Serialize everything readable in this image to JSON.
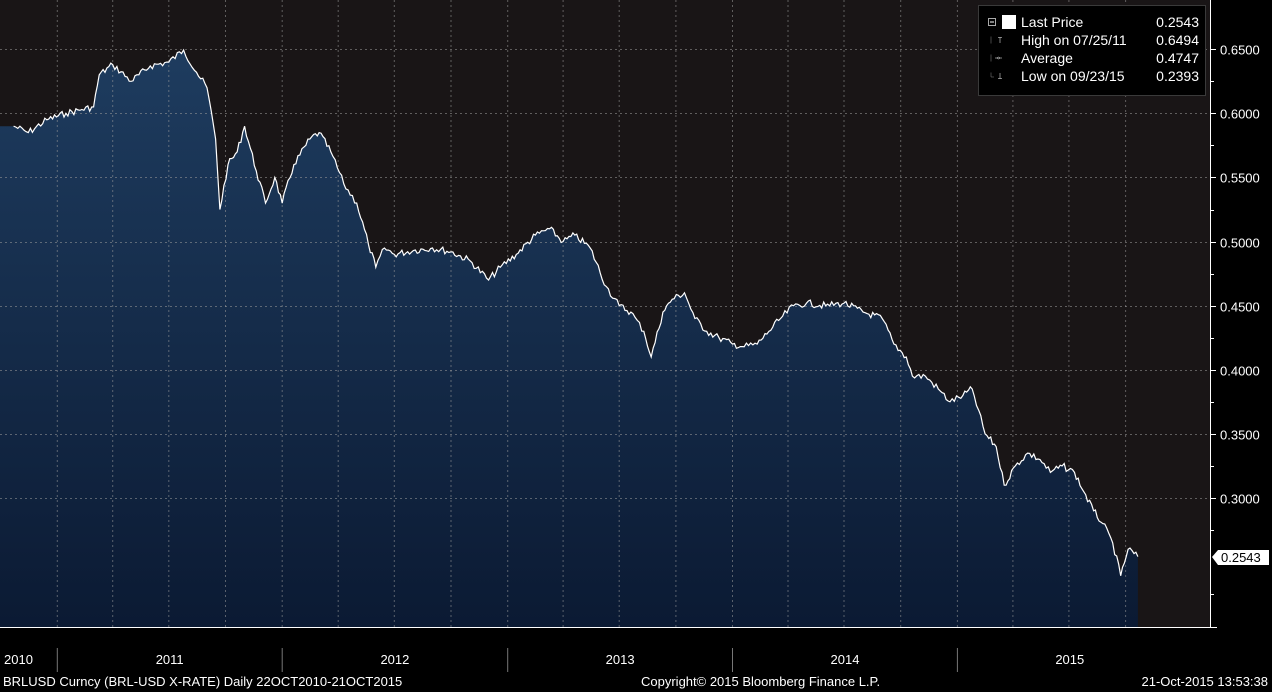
{
  "chart_data": {
    "type": "area",
    "x_range": [
      "2010-10-22",
      "2015-10-21"
    ],
    "ylim": [
      0.2,
      0.68
    ],
    "yticks": [
      "0.3000",
      "0.3500",
      "0.4000",
      "0.4500",
      "0.5000",
      "0.5500",
      "0.6000",
      "0.6500"
    ],
    "xticks": [
      "2010",
      "2011",
      "2012",
      "2013",
      "2014",
      "2015"
    ],
    "grid": true,
    "legend_position": "top-right",
    "last_value_label": "0.2543",
    "series": [
      {
        "name": "Last Price",
        "points": [
          [
            "2010-10-22",
            0.59
          ],
          [
            "2010-11-15",
            0.585
          ],
          [
            "2010-12-15",
            0.595
          ],
          [
            "2011-01-15",
            0.6
          ],
          [
            "2011-02-10",
            0.603
          ],
          [
            "2011-03-01",
            0.605
          ],
          [
            "2011-03-10",
            0.63
          ],
          [
            "2011-04-01",
            0.638
          ],
          [
            "2011-05-01",
            0.625
          ],
          [
            "2011-06-01",
            0.637
          ],
          [
            "2011-07-01",
            0.64
          ],
          [
            "2011-07-25",
            0.6494
          ],
          [
            "2011-08-15",
            0.632
          ],
          [
            "2011-09-01",
            0.62
          ],
          [
            "2011-09-15",
            0.58
          ],
          [
            "2011-09-22",
            0.525
          ],
          [
            "2011-10-05",
            0.56
          ],
          [
            "2011-10-20",
            0.57
          ],
          [
            "2011-11-01",
            0.59
          ],
          [
            "2011-11-20",
            0.555
          ],
          [
            "2011-12-05",
            0.53
          ],
          [
            "2011-12-20",
            0.55
          ],
          [
            "2012-01-01",
            0.53
          ],
          [
            "2012-01-20",
            0.56
          ],
          [
            "2012-02-15",
            0.58
          ],
          [
            "2012-03-01",
            0.585
          ],
          [
            "2012-03-20",
            0.57
          ],
          [
            "2012-04-10",
            0.545
          ],
          [
            "2012-05-01",
            0.53
          ],
          [
            "2012-05-20",
            0.498
          ],
          [
            "2012-06-01",
            0.48
          ],
          [
            "2012-06-15",
            0.495
          ],
          [
            "2012-07-01",
            0.49
          ],
          [
            "2012-08-01",
            0.493
          ],
          [
            "2012-09-01",
            0.495
          ],
          [
            "2012-10-01",
            0.492
          ],
          [
            "2012-11-01",
            0.485
          ],
          [
            "2012-12-01",
            0.47
          ],
          [
            "2012-12-20",
            0.48
          ],
          [
            "2013-01-15",
            0.49
          ],
          [
            "2013-02-15",
            0.505
          ],
          [
            "2013-03-10",
            0.51
          ],
          [
            "2013-04-01",
            0.5
          ],
          [
            "2013-04-20",
            0.505
          ],
          [
            "2013-05-15",
            0.495
          ],
          [
            "2013-06-10",
            0.465
          ],
          [
            "2013-07-01",
            0.45
          ],
          [
            "2013-07-20",
            0.445
          ],
          [
            "2013-08-10",
            0.43
          ],
          [
            "2013-08-22",
            0.41
          ],
          [
            "2013-09-10",
            0.445
          ],
          [
            "2013-09-25",
            0.455
          ],
          [
            "2013-10-15",
            0.46
          ],
          [
            "2013-11-01",
            0.44
          ],
          [
            "2013-11-20",
            0.43
          ],
          [
            "2013-12-10",
            0.425
          ],
          [
            "2014-01-01",
            0.42
          ],
          [
            "2014-01-20",
            0.418
          ],
          [
            "2014-02-10",
            0.42
          ],
          [
            "2014-03-01",
            0.43
          ],
          [
            "2014-03-20",
            0.44
          ],
          [
            "2014-04-10",
            0.45
          ],
          [
            "2014-05-01",
            0.452
          ],
          [
            "2014-06-01",
            0.45
          ],
          [
            "2014-07-01",
            0.452
          ],
          [
            "2014-08-01",
            0.445
          ],
          [
            "2014-09-01",
            0.44
          ],
          [
            "2014-09-20",
            0.42
          ],
          [
            "2014-10-10",
            0.41
          ],
          [
            "2014-10-20",
            0.395
          ],
          [
            "2014-11-10",
            0.395
          ],
          [
            "2014-12-01",
            0.385
          ],
          [
            "2014-12-20",
            0.375
          ],
          [
            "2015-01-10",
            0.38
          ],
          [
            "2015-01-25",
            0.385
          ],
          [
            "2015-02-15",
            0.35
          ],
          [
            "2015-03-05",
            0.34
          ],
          [
            "2015-03-18",
            0.31
          ],
          [
            "2015-04-05",
            0.325
          ],
          [
            "2015-04-25",
            0.335
          ],
          [
            "2015-05-15",
            0.33
          ],
          [
            "2015-06-01",
            0.32
          ],
          [
            "2015-06-20",
            0.325
          ],
          [
            "2015-07-10",
            0.32
          ],
          [
            "2015-07-25",
            0.305
          ],
          [
            "2015-08-10",
            0.29
          ],
          [
            "2015-08-25",
            0.28
          ],
          [
            "2015-09-10",
            0.265
          ],
          [
            "2015-09-23",
            0.2393
          ],
          [
            "2015-10-05",
            0.26
          ],
          [
            "2015-10-21",
            0.2543
          ]
        ]
      }
    ],
    "colors": {
      "background": "#000000",
      "plot_area": "#191516",
      "area_top": "#1e3c5f",
      "area_bottom": "#0b1a33",
      "line": "#ffffff",
      "grid": "#9a9a9a"
    }
  },
  "legend": [
    {
      "label": "Last Price",
      "value": "0.2543",
      "icon": "filled-square-icon"
    },
    {
      "label": "High on 07/25/11",
      "value": "0.6494",
      "icon": "high-marker-icon"
    },
    {
      "label": "Average",
      "value": "0.4747",
      "icon": "average-marker-icon"
    },
    {
      "label": "Low on 09/23/15",
      "value": "0.2393",
      "icon": "low-marker-icon"
    }
  ],
  "footer": {
    "left": "BRLUSD Curncy (BRL-USD X-RATE)  Daily 22OCT2010-21OCT2015",
    "center": "Copyright© 2015 Bloomberg Finance L.P.",
    "right": "21-Oct-2015 13:53:38"
  }
}
